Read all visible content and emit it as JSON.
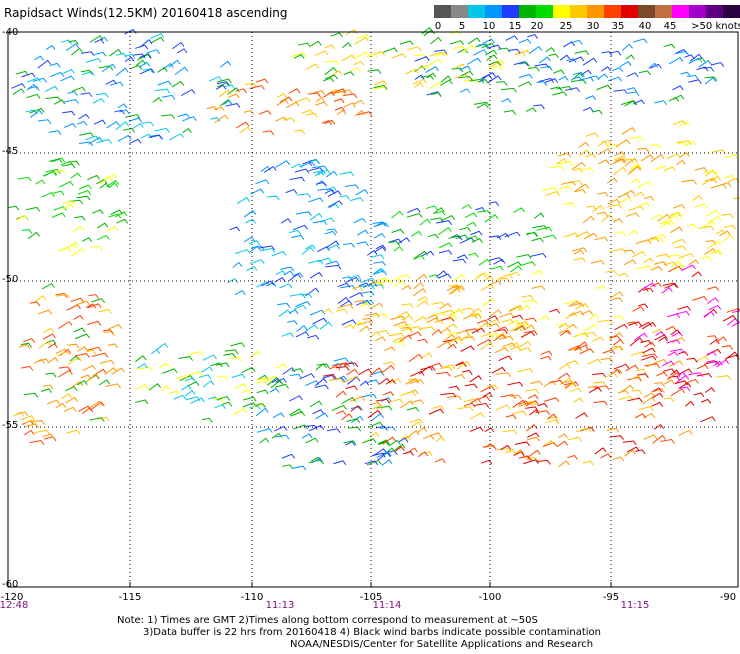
{
  "title": "Rapidsact Winds(12.5KM) 20160418 ascending",
  "legend": {
    "ticks": [
      "0",
      "5",
      "10",
      "15",
      "20",
      "25",
      "30",
      "35",
      "40",
      "45",
      ">50 knots"
    ],
    "colors": [
      "#555555",
      "#888888",
      "#00c8e8",
      "#0096ff",
      "#1e3cff",
      "#00b400",
      "#00dc00",
      "#ffff00",
      "#ffc800",
      "#ff9600",
      "#ff4000",
      "#e00000",
      "#7a4a2a",
      "#c07040",
      "#ff00ff",
      "#a000c8",
      "#5a0080",
      "#2a0040"
    ]
  },
  "lat_labels": [
    "-40",
    "-45",
    "-50",
    "-55",
    "-60"
  ],
  "lon_labels": [
    "-120",
    "-115",
    "-110",
    "-105",
    "-100",
    "-95",
    "-90"
  ],
  "time_labels": [
    "12:48",
    "11:13",
    "11:14",
    "11:15"
  ],
  "notes": [
    "Note: 1) Times are GMT 2)Times along bottom correspond to measurement at ~50S",
    "3)Data buffer is 22 hrs from 20160418 4) Black wind barbs indicate possible contamination",
    "NOAA/NESDIS/Center for Satellite Applications and Research"
  ]
}
